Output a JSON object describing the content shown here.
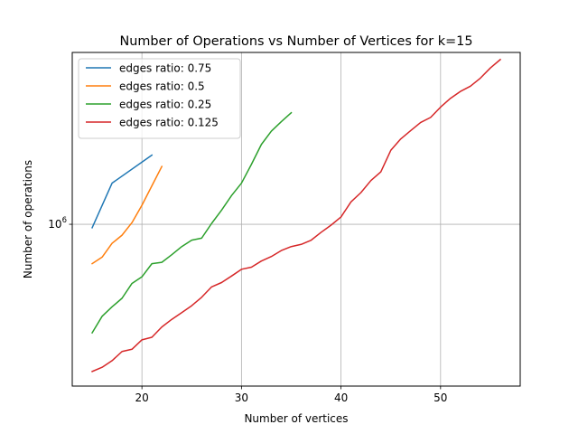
{
  "chart_data": {
    "type": "line",
    "title": "Number of Operations vs Number of Vertices for k=15",
    "xlabel": "Number of vertices",
    "ylabel": "Number of operations",
    "xlim": [
      13.0,
      58.0
    ],
    "ylim": [
      150000,
      7500000
    ],
    "yscale": "log",
    "grid": true,
    "legend_position": "top-left",
    "x_ticks": [
      {
        "value": 20,
        "label": "20"
      },
      {
        "value": 30,
        "label": "30"
      },
      {
        "value": 40,
        "label": "40"
      },
      {
        "value": 50,
        "label": "50"
      }
    ],
    "y_ticks": [
      {
        "value": 1000000,
        "label_base": "10",
        "label_exp": "6"
      }
    ],
    "series": [
      {
        "name": "edges ratio: 0.75",
        "color": "#1f77b4",
        "x": [
          15,
          17,
          21
        ],
        "y": [
          960000,
          1620000,
          2250000
        ]
      },
      {
        "name": "edges ratio: 0.5",
        "color": "#ff7f0e",
        "x": [
          15,
          16,
          17,
          18,
          19,
          20,
          21,
          22
        ],
        "y": [
          630000,
          680000,
          800000,
          880000,
          1020000,
          1250000,
          1570000,
          1970000
        ]
      },
      {
        "name": "edges ratio: 0.25",
        "color": "#2ca02c",
        "x": [
          15,
          16,
          17,
          18,
          19,
          20,
          21,
          22,
          23,
          24,
          25,
          26,
          27,
          28,
          29,
          30,
          31,
          32,
          33,
          34,
          35
        ],
        "y": [
          280000,
          340000,
          380000,
          420000,
          500000,
          540000,
          630000,
          640000,
          700000,
          770000,
          830000,
          850000,
          1010000,
          1180000,
          1400000,
          1620000,
          2020000,
          2550000,
          2980000,
          3330000,
          3700000
        ]
      },
      {
        "name": "edges ratio: 0.125",
        "color": "#d62728",
        "x": [
          15,
          16,
          17,
          18,
          19,
          20,
          21,
          22,
          23,
          24,
          25,
          26,
          27,
          28,
          29,
          30,
          31,
          32,
          33,
          34,
          35,
          36,
          37,
          38,
          39,
          40,
          41,
          42,
          43,
          44,
          45,
          46,
          47,
          48,
          49,
          50,
          51,
          52,
          53,
          54,
          55,
          56
        ],
        "y": [
          178000,
          187000,
          202000,
          225000,
          231000,
          258000,
          266000,
          300000,
          328000,
          355000,
          385000,
          425000,
          480000,
          505000,
          545000,
          590000,
          605000,
          650000,
          685000,
          735000,
          770000,
          790000,
          830000,
          910000,
          990000,
          1090000,
          1300000,
          1450000,
          1670000,
          1850000,
          2380000,
          2720000,
          3000000,
          3300000,
          3500000,
          3950000,
          4380000,
          4750000,
          5050000,
          5550000,
          6250000,
          6900000
        ]
      }
    ]
  }
}
